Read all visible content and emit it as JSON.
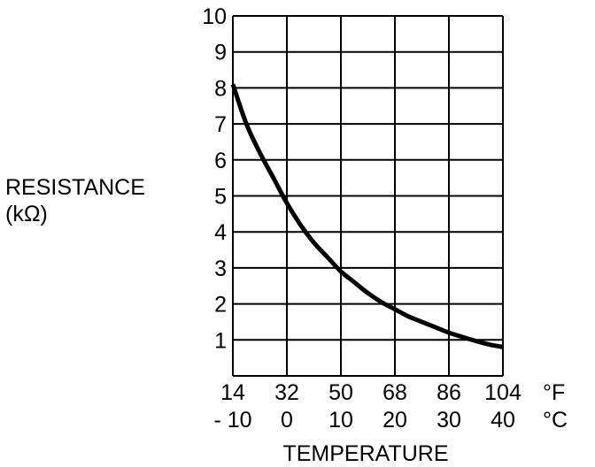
{
  "chart_data": {
    "type": "line",
    "ylabel_lines": [
      "RESISTANCE",
      "(kΩ)"
    ],
    "xlabel": "TEMPERATURE",
    "x_ticks_f": [
      "14",
      "32",
      "50",
      "68",
      "86",
      "104"
    ],
    "x_ticks_c": [
      "- 10",
      "0",
      "10",
      "20",
      "30",
      "40"
    ],
    "x_unit_f": "°F",
    "x_unit_c": "°C",
    "y_ticks": [
      "1",
      "2",
      "3",
      "4",
      "5",
      "6",
      "7",
      "8",
      "9",
      "10"
    ],
    "xlim": [
      -10,
      40
    ],
    "ylim": [
      0,
      10
    ],
    "grid": true,
    "series": [
      {
        "x": [
          -10,
          -7.5,
          -5,
          -2.5,
          0,
          2.5,
          5,
          7.5,
          10,
          12.5,
          15,
          17.5,
          20,
          22.5,
          25,
          27.5,
          30,
          32.5,
          35,
          37.5,
          40
        ],
        "y": [
          8.1,
          7.0,
          6.2,
          5.5,
          4.8,
          4.2,
          3.7,
          3.3,
          2.9,
          2.6,
          2.3,
          2.05,
          1.85,
          1.65,
          1.5,
          1.35,
          1.2,
          1.08,
          0.97,
          0.87,
          0.8
        ]
      }
    ]
  }
}
